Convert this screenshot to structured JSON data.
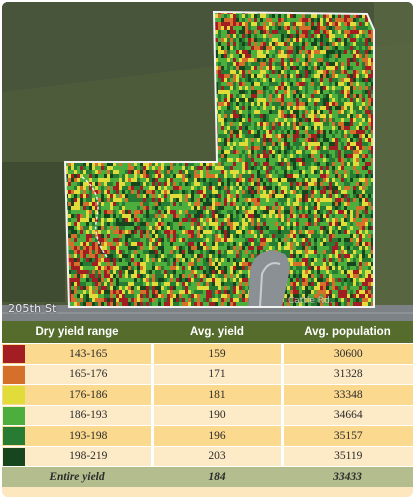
{
  "map": {
    "road_label": "205th St",
    "road_label_2": "Cattle Rd."
  },
  "legend": {
    "headers": [
      "Dry yield range",
      "Avg. yield",
      "Avg. population"
    ],
    "rows": [
      {
        "color": "#a31e22",
        "range": "143-165",
        "yield": "159",
        "population": "30600"
      },
      {
        "color": "#d4702a",
        "range": "165-176",
        "yield": "171",
        "population": "31328"
      },
      {
        "color": "#e1dc3a",
        "range": "176-186",
        "yield": "181",
        "population": "33348"
      },
      {
        "color": "#4cae3c",
        "range": "186-193",
        "yield": "190",
        "population": "34664"
      },
      {
        "color": "#277b33",
        "range": "193-198",
        "yield": "196",
        "population": "35157"
      },
      {
        "color": "#17451e",
        "range": "198-219",
        "yield": "203",
        "population": "35119"
      }
    ],
    "total": {
      "label": "Entire yield",
      "yield": "184",
      "population": "33433"
    }
  }
}
